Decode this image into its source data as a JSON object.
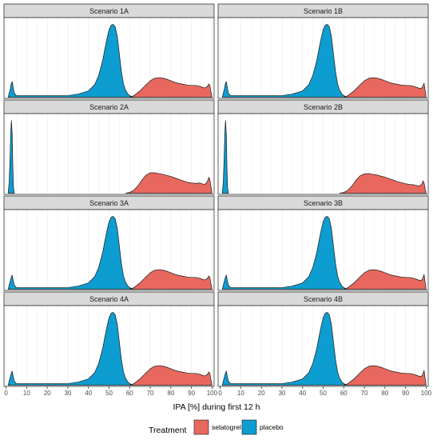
{
  "chart_data": {
    "type": "area",
    "xlabel": "IPA [%] during first 12 h",
    "xlim": [
      -1,
      101
    ],
    "x_ticks": [
      "0",
      "10",
      "20",
      "30",
      "40",
      "50",
      "60",
      "70",
      "80",
      "90",
      "100"
    ],
    "grid": true,
    "legend": {
      "title": "Treatment",
      "placement": "bottom",
      "entries": [
        {
          "name": "selatogrel",
          "color": "#E8685F"
        },
        {
          "name": "placebo",
          "color": "#0E9DD0"
        }
      ]
    },
    "panels": [
      {
        "title": "Scenario 1A",
        "series": [
          {
            "name": "placebo",
            "x": [
              1,
              2,
              2.5,
              3,
              3.5,
              4,
              5,
              10,
              20,
              30,
              35,
              40,
              43,
              45,
              47,
              48,
              49,
              50,
              51,
              52,
              53,
              54,
              55,
              56,
              57,
              58,
              59,
              60,
              61,
              62
            ],
            "density": [
              0,
              0.1,
              0.17,
              0.2,
              0.12,
              0.05,
              0.02,
              0.02,
              0.02,
              0.02,
              0.04,
              0.08,
              0.16,
              0.28,
              0.48,
              0.62,
              0.75,
              0.86,
              0.92,
              0.93,
              0.9,
              0.78,
              0.55,
              0.33,
              0.17,
              0.09,
              0.045,
              0.02,
              0.01,
              0
            ]
          },
          {
            "name": "selatogrel",
            "x": [
              60,
              62,
              65,
              68,
              70,
              72,
              74,
              76,
              78,
              80,
              82,
              84,
              86,
              88,
              90,
              92,
              94,
              96,
              97,
              98,
              98.5,
              99,
              99.5,
              100
            ],
            "density": [
              0,
              0.02,
              0.08,
              0.16,
              0.21,
              0.24,
              0.25,
              0.245,
              0.23,
              0.21,
              0.19,
              0.175,
              0.165,
              0.155,
              0.15,
              0.15,
              0.14,
              0.12,
              0.12,
              0.15,
              0.17,
              0.14,
              0.06,
              0
            ]
          }
        ]
      },
      {
        "title": "Scenario 1B",
        "series": [
          {
            "name": "placebo",
            "x": [
              1,
              2,
              2.5,
              3,
              3.5,
              4,
              5,
              10,
              20,
              30,
              35,
              40,
              43,
              45,
              47,
              48,
              49,
              50,
              51,
              52,
              53,
              54,
              55,
              56,
              57,
              58,
              59,
              60,
              61,
              62
            ],
            "density": [
              0,
              0.1,
              0.17,
              0.2,
              0.12,
              0.05,
              0.02,
              0.02,
              0.02,
              0.02,
              0.04,
              0.08,
              0.16,
              0.28,
              0.48,
              0.62,
              0.75,
              0.86,
              0.92,
              0.93,
              0.9,
              0.78,
              0.55,
              0.33,
              0.17,
              0.09,
              0.045,
              0.02,
              0.01,
              0
            ]
          },
          {
            "name": "selatogrel",
            "x": [
              60,
              62,
              65,
              68,
              70,
              72,
              74,
              76,
              78,
              80,
              82,
              84,
              86,
              88,
              90,
              92,
              94,
              96,
              97,
              98,
              98.5,
              99,
              99.5,
              100
            ],
            "density": [
              0,
              0.02,
              0.08,
              0.16,
              0.21,
              0.24,
              0.25,
              0.245,
              0.23,
              0.21,
              0.19,
              0.175,
              0.165,
              0.155,
              0.15,
              0.15,
              0.14,
              0.12,
              0.11,
              0.12,
              0.15,
              0.18,
              0.08,
              0
            ]
          }
        ]
      },
      {
        "title": "Scenario 2A",
        "series": [
          {
            "name": "placebo",
            "x": [
              1,
              1.5,
              2,
              2.3,
              2.6,
              3,
              3.3,
              3.6,
              4
            ],
            "density": [
              0,
              0.15,
              0.55,
              0.85,
              1.0,
              0.8,
              0.35,
              0.08,
              0
            ]
          },
          {
            "name": "selatogrel",
            "x": [
              58,
              60,
              62,
              64,
              66,
              68,
              70,
              72,
              74,
              76,
              78,
              80,
              82,
              84,
              86,
              88,
              90,
              92,
              94,
              96,
              97,
              98,
              98.5,
              99,
              99.5,
              100
            ],
            "density": [
              0,
              0.01,
              0.04,
              0.1,
              0.18,
              0.25,
              0.28,
              0.28,
              0.27,
              0.26,
              0.245,
              0.23,
              0.21,
              0.19,
              0.17,
              0.15,
              0.14,
              0.135,
              0.14,
              0.12,
              0.13,
              0.18,
              0.22,
              0.18,
              0.08,
              0
            ]
          }
        ]
      },
      {
        "title": "Scenario 2B",
        "series": [
          {
            "name": "placebo",
            "x": [
              1,
              1.5,
              2,
              2.3,
              2.6,
              3,
              3.3,
              3.6,
              4
            ],
            "density": [
              0,
              0.15,
              0.55,
              0.85,
              1.0,
              0.8,
              0.35,
              0.08,
              0
            ]
          },
          {
            "name": "selatogrel",
            "x": [
              58,
              60,
              62,
              64,
              66,
              68,
              70,
              72,
              74,
              76,
              78,
              80,
              82,
              84,
              86,
              88,
              90,
              92,
              94,
              96,
              97,
              98,
              98.5,
              99,
              99.5,
              100
            ],
            "density": [
              0,
              0.01,
              0.04,
              0.1,
              0.18,
              0.24,
              0.265,
              0.27,
              0.26,
              0.25,
              0.235,
              0.22,
              0.2,
              0.18,
              0.16,
              0.145,
              0.13,
              0.12,
              0.115,
              0.1,
              0.1,
              0.13,
              0.17,
              0.14,
              0.06,
              0
            ]
          }
        ]
      },
      {
        "title": "Scenario 3A",
        "series": [
          {
            "name": "placebo",
            "x": [
              1,
              2,
              2.5,
              3,
              3.5,
              4,
              5,
              10,
              20,
              30,
              35,
              40,
              43,
              45,
              47,
              48,
              49,
              50,
              51,
              52,
              53,
              54,
              55,
              56,
              57,
              58,
              59,
              60,
              61,
              62
            ],
            "density": [
              0,
              0.1,
              0.15,
              0.18,
              0.11,
              0.05,
              0.02,
              0.02,
              0.02,
              0.02,
              0.04,
              0.08,
              0.16,
              0.28,
              0.48,
              0.62,
              0.75,
              0.86,
              0.92,
              0.93,
              0.9,
              0.78,
              0.55,
              0.33,
              0.17,
              0.09,
              0.045,
              0.02,
              0.01,
              0
            ]
          },
          {
            "name": "selatogrel",
            "x": [
              60,
              62,
              65,
              68,
              70,
              72,
              74,
              76,
              78,
              80,
              82,
              84,
              86,
              88,
              90,
              92,
              94,
              96,
              97,
              98,
              98.5,
              99,
              99.5,
              100
            ],
            "density": [
              0,
              0.02,
              0.08,
              0.16,
              0.21,
              0.24,
              0.25,
              0.245,
              0.23,
              0.21,
              0.19,
              0.175,
              0.165,
              0.155,
              0.15,
              0.15,
              0.14,
              0.12,
              0.12,
              0.15,
              0.17,
              0.14,
              0.06,
              0
            ]
          }
        ]
      },
      {
        "title": "Scenario 3B",
        "series": [
          {
            "name": "placebo",
            "x": [
              1,
              2,
              2.5,
              3,
              3.5,
              4,
              5,
              10,
              20,
              30,
              35,
              40,
              43,
              45,
              47,
              48,
              49,
              50,
              51,
              52,
              53,
              54,
              55,
              56,
              57,
              58,
              59,
              60,
              61,
              62
            ],
            "density": [
              0,
              0.1,
              0.15,
              0.18,
              0.11,
              0.05,
              0.02,
              0.02,
              0.02,
              0.02,
              0.04,
              0.08,
              0.16,
              0.28,
              0.48,
              0.62,
              0.75,
              0.86,
              0.92,
              0.93,
              0.9,
              0.78,
              0.55,
              0.33,
              0.17,
              0.09,
              0.045,
              0.02,
              0.01,
              0
            ]
          },
          {
            "name": "selatogrel",
            "x": [
              60,
              62,
              65,
              68,
              70,
              72,
              74,
              76,
              78,
              80,
              82,
              84,
              86,
              88,
              90,
              92,
              94,
              96,
              97,
              98,
              98.5,
              99,
              99.5,
              100
            ],
            "density": [
              0,
              0.02,
              0.08,
              0.16,
              0.21,
              0.24,
              0.25,
              0.245,
              0.23,
              0.21,
              0.19,
              0.175,
              0.165,
              0.155,
              0.15,
              0.15,
              0.14,
              0.12,
              0.11,
              0.12,
              0.15,
              0.19,
              0.08,
              0
            ]
          }
        ]
      },
      {
        "title": "Scenario 4A",
        "series": [
          {
            "name": "placebo",
            "x": [
              1,
              2,
              2.5,
              3,
              3.5,
              4,
              5,
              10,
              20,
              30,
              35,
              40,
              43,
              45,
              47,
              48,
              49,
              50,
              51,
              52,
              53,
              54,
              55,
              56,
              57,
              58,
              59,
              60,
              61,
              62
            ],
            "density": [
              0,
              0.1,
              0.15,
              0.18,
              0.11,
              0.05,
              0.02,
              0.02,
              0.02,
              0.02,
              0.04,
              0.08,
              0.16,
              0.28,
              0.48,
              0.62,
              0.75,
              0.86,
              0.92,
              0.93,
              0.9,
              0.78,
              0.55,
              0.33,
              0.17,
              0.09,
              0.045,
              0.02,
              0.01,
              0
            ]
          },
          {
            "name": "selatogrel",
            "x": [
              60,
              62,
              65,
              68,
              70,
              72,
              74,
              76,
              78,
              80,
              82,
              84,
              86,
              88,
              90,
              92,
              94,
              96,
              97,
              98,
              98.5,
              99,
              99.5,
              100
            ],
            "density": [
              0,
              0.02,
              0.08,
              0.16,
              0.21,
              0.24,
              0.25,
              0.245,
              0.23,
              0.21,
              0.19,
              0.175,
              0.165,
              0.155,
              0.15,
              0.15,
              0.14,
              0.12,
              0.12,
              0.15,
              0.17,
              0.14,
              0.06,
              0
            ]
          }
        ]
      },
      {
        "title": "Scenario 4B",
        "series": [
          {
            "name": "placebo",
            "x": [
              1,
              2,
              2.5,
              3,
              3.5,
              4,
              5,
              10,
              20,
              30,
              35,
              40,
              43,
              45,
              47,
              48,
              49,
              50,
              51,
              52,
              53,
              54,
              55,
              56,
              57,
              58,
              59,
              60,
              61,
              62
            ],
            "density": [
              0,
              0.1,
              0.15,
              0.18,
              0.11,
              0.05,
              0.02,
              0.02,
              0.02,
              0.02,
              0.04,
              0.08,
              0.16,
              0.28,
              0.48,
              0.62,
              0.75,
              0.86,
              0.92,
              0.93,
              0.9,
              0.78,
              0.55,
              0.33,
              0.17,
              0.09,
              0.045,
              0.02,
              0.01,
              0
            ]
          },
          {
            "name": "selatogrel",
            "x": [
              60,
              62,
              65,
              68,
              70,
              72,
              74,
              76,
              78,
              80,
              82,
              84,
              86,
              88,
              90,
              92,
              94,
              96,
              97,
              98,
              98.5,
              99,
              99.5,
              100
            ],
            "density": [
              0,
              0.02,
              0.08,
              0.16,
              0.21,
              0.24,
              0.25,
              0.245,
              0.23,
              0.21,
              0.19,
              0.175,
              0.165,
              0.155,
              0.15,
              0.15,
              0.14,
              0.12,
              0.11,
              0.12,
              0.15,
              0.19,
              0.08,
              0
            ]
          }
        ]
      }
    ]
  }
}
